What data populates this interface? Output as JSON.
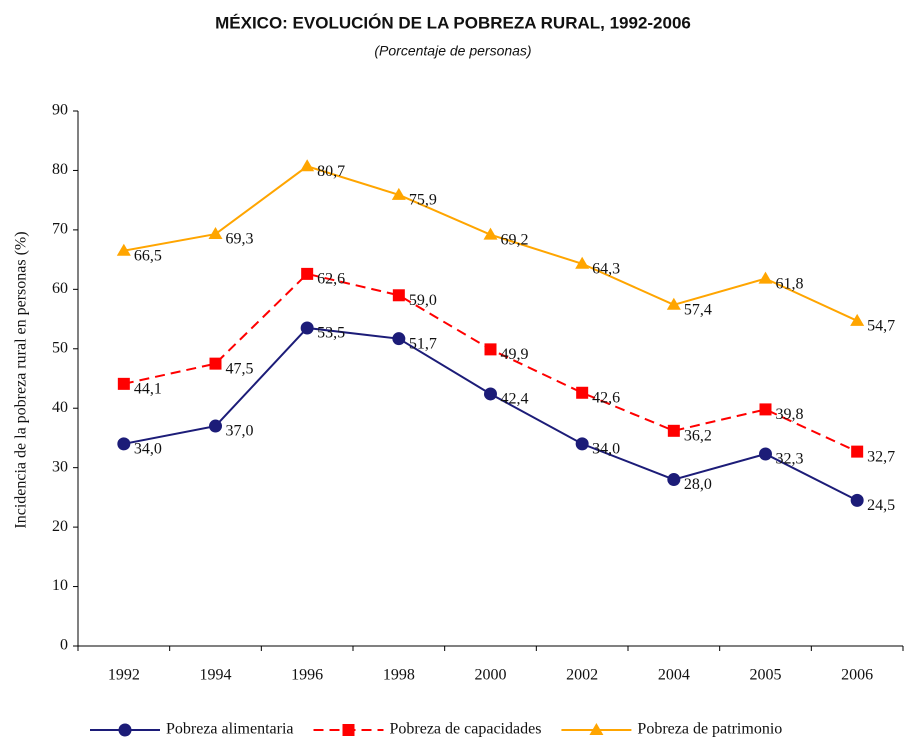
{
  "chart_data": {
    "type": "line",
    "title": "MÉXICO: EVOLUCIÓN DE LA POBREZA RURAL, 1992-2006",
    "subtitle": "(Porcentaje de personas)",
    "y_label": "Incidencia de la pobreza rural en personas (%)",
    "categories": [
      "1992",
      "1994",
      "1996",
      "1998",
      "2000",
      "2002",
      "2004",
      "2005",
      "2006"
    ],
    "ylim": [
      0,
      90
    ],
    "yticks": [
      0,
      10,
      20,
      30,
      40,
      50,
      60,
      70,
      80,
      90
    ],
    "legend": "bottom",
    "series": [
      {
        "name": "Pobreza alimentaria",
        "color": "#1c1c78",
        "marker": "circle",
        "dash": false,
        "values": [
          34.0,
          37.0,
          53.5,
          51.7,
          42.4,
          34.0,
          28.0,
          32.3,
          24.5
        ],
        "value_labels": [
          "34,0",
          "37,0",
          "53,5",
          "51,7",
          "42,4",
          "34,0",
          "28,0",
          "32,3",
          "24,5"
        ]
      },
      {
        "name": "Pobreza de capacidades",
        "color": "#ff0000",
        "marker": "square",
        "dash": true,
        "values": [
          44.1,
          47.5,
          62.6,
          59.0,
          49.9,
          42.6,
          36.2,
          39.8,
          32.7
        ],
        "value_labels": [
          "44,1",
          "47,5",
          "62,6",
          "59,0",
          "49,9",
          "42,6",
          "36,2",
          "39,8",
          "32,7"
        ]
      },
      {
        "name": "Pobreza de patrimonio",
        "color": "#ffa500",
        "marker": "triangle",
        "dash": false,
        "values": [
          66.5,
          69.3,
          80.7,
          75.9,
          69.2,
          64.3,
          57.4,
          61.8,
          54.7
        ],
        "value_labels": [
          "66,5",
          "69,3",
          "80,7",
          "75,9",
          "69,2",
          "64,3",
          "57,4",
          "61,8",
          "54,7"
        ]
      }
    ]
  }
}
